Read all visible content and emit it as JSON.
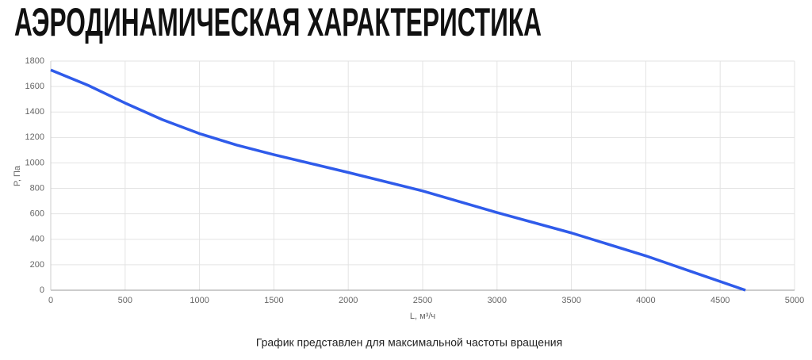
{
  "chart_data": {
    "type": "line",
    "title": "АЭРОДИНАМИЧЕСКАЯ ХАРАКТЕРИСТИКА",
    "caption": "График представлен для максимальной частоты вращения",
    "x_label": "L, м³/ч",
    "y_label": "P, Па",
    "x": [
      0,
      250,
      500,
      750,
      1000,
      1250,
      1500,
      2000,
      2500,
      3000,
      3500,
      4000,
      4670
    ],
    "series": [
      {
        "color": "#2f5bea",
        "values": [
          1730,
          1610,
          1470,
          1340,
          1230,
          1140,
          1065,
          925,
          780,
          610,
          450,
          270,
          0
        ]
      }
    ],
    "xlim": [
      0,
      5000
    ],
    "xticks": [
      0,
      500,
      1000,
      1500,
      2000,
      2500,
      3000,
      3500,
      4000,
      4500,
      5000
    ],
    "ylim": [
      0,
      1800
    ],
    "yticks": [
      0,
      200,
      400,
      600,
      800,
      1000,
      1200,
      1400,
      1600,
      1800
    ],
    "grid": true
  }
}
